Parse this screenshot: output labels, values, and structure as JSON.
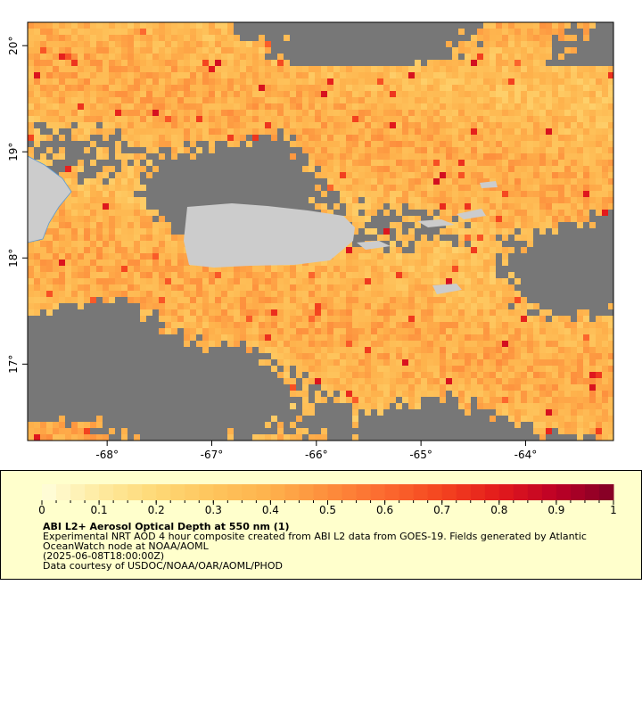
{
  "map": {
    "xlim": [
      -68.76,
      -63.16
    ],
    "ylim": [
      16.28,
      20.22
    ],
    "xticks": [
      {
        "value": -68,
        "label": "-68°"
      },
      {
        "value": -67,
        "label": "-67°"
      },
      {
        "value": -66,
        "label": "-66°"
      },
      {
        "value": -65,
        "label": "-65°"
      },
      {
        "value": -64,
        "label": "-64°"
      }
    ],
    "yticks": [
      {
        "value": 17,
        "label": "17°"
      },
      {
        "value": 18,
        "label": "18°"
      },
      {
        "value": 19,
        "label": "19°"
      },
      {
        "value": 20,
        "label": "20°"
      }
    ]
  },
  "colorbar": {
    "lim": [
      0,
      1
    ],
    "ticks": [
      0,
      0.1,
      0.2,
      0.3,
      0.4,
      0.5,
      0.6,
      0.7,
      0.8,
      0.9,
      1
    ],
    "colors": [
      "#ffffdd",
      "#feeaa0",
      "#fed976",
      "#fec45c",
      "#feb24c",
      "#fd8d3c",
      "#fc6a2f",
      "#f4441f",
      "#e31a1c",
      "#bd0026",
      "#800026"
    ]
  },
  "caption": {
    "title": "ABI L2+ Aerosol Optical Depth at 550 nm (1)",
    "description": [
      "Experimental NRT AOD 4 hour composite created from ABI L2 data from GOES-19. Fields generated by Atlantic",
      "OceanWatch node at NOAA/AOML"
    ],
    "time": "(2025-06-08T18:00:00Z)",
    "credit": "Data courtesy of USDOC/NOAA/OAR/AOML/PHOD"
  }
}
